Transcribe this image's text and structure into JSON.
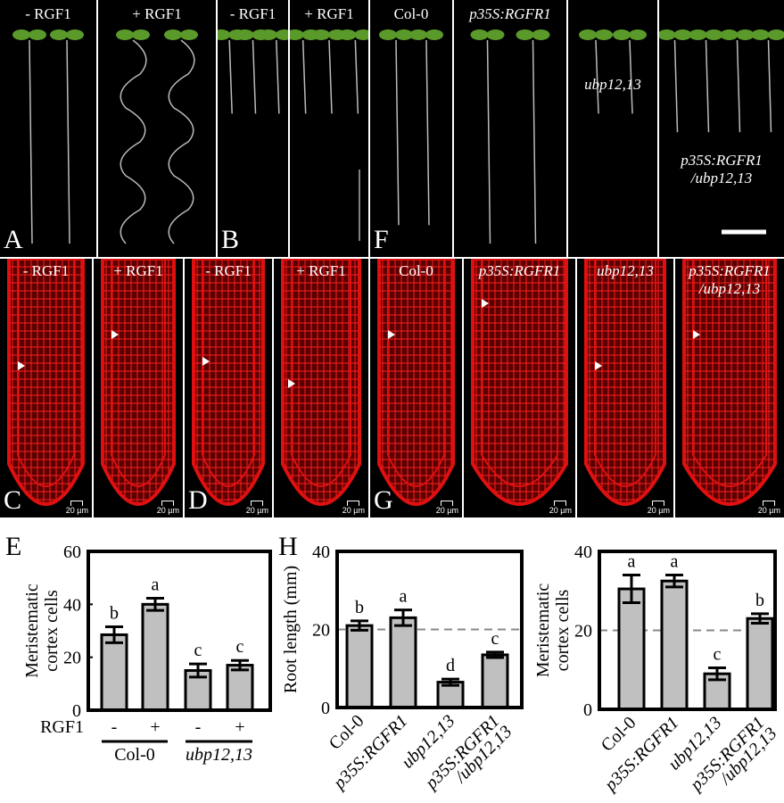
{
  "panels_top": [
    {
      "label": "- RGF1",
      "letter": "A",
      "type": "seedlings",
      "n": 2,
      "long": 1
    },
    {
      "label": "+ RGF1",
      "type": "seedlings",
      "n": 2,
      "long": 1,
      "wavy": 1
    },
    {
      "label": "- RGF1",
      "letter": "B",
      "type": "seedlings",
      "n": 3,
      "long": 0.3
    },
    {
      "label": "+ RGF1",
      "type": "seedlings",
      "n": 3,
      "long": 0.3
    },
    {
      "label": "Col-0",
      "letter": "F",
      "type": "seedlings",
      "n": 2,
      "long": 0.9
    },
    {
      "label": "p35S:RGFR1",
      "italic": true,
      "type": "seedlings",
      "n": 2,
      "long": 1
    },
    {
      "label": "ubp12,13",
      "italic": true,
      "type": "seedlings",
      "n": 2,
      "long": 0.3
    },
    {
      "label": "p35S:RGFR1",
      "label2": "/ubp12,13",
      "italic": true,
      "type": "seedlings",
      "n": 4,
      "long": 0.4
    }
  ],
  "panels_mid": [
    {
      "label": "- RGF1",
      "letter": "C",
      "scale": "20 µm"
    },
    {
      "label": "+ RGF1",
      "scale": "20 µm"
    },
    {
      "label": "- RGF1",
      "letter": "D",
      "scale": "20 µm"
    },
    {
      "label": "+ RGF1",
      "scale": "20 µm"
    },
    {
      "label": "Col-0",
      "letter": "G",
      "scale": "20 µm"
    },
    {
      "label": "p35S:RGFR1",
      "italic": true,
      "scale": "20 µm"
    },
    {
      "label": "ubp12,13",
      "italic": true,
      "scale": "20 µm"
    },
    {
      "label": "p35S:RGFR1",
      "label2": "/ubp12,13",
      "italic": true,
      "scale": "20 µm"
    }
  ],
  "chart_data": [
    {
      "type": "bar",
      "panel": "E",
      "ylabel": [
        "Meristematic",
        "cortex cells"
      ],
      "ylim": [
        0,
        60
      ],
      "yticks": [
        0,
        20,
        40,
        60
      ],
      "categories": [
        "-",
        "+",
        "-",
        "+"
      ],
      "row_label": "RGF1",
      "groups": [
        {
          "name": "Col-0",
          "italic": false
        },
        {
          "name": "ubp12,13",
          "italic": true
        }
      ],
      "values": [
        28.5,
        40,
        15,
        17
      ],
      "errors": [
        3,
        2.3,
        2.5,
        1.8
      ],
      "letters": [
        "b",
        "a",
        "c",
        "c"
      ]
    },
    {
      "type": "bar",
      "panel": "H",
      "ylabel": [
        "Root length (mm)"
      ],
      "ylim": [
        0,
        40
      ],
      "yticks": [
        0,
        20,
        40
      ],
      "reference_line": 20,
      "categories": [
        "Col-0",
        "p35S:RGFR1",
        "ubp12,13",
        "p35S:RGFR1 /ubp12,13"
      ],
      "values": [
        21,
        23,
        6.5,
        13.5
      ],
      "errors": [
        1.2,
        2,
        0.8,
        0.7
      ],
      "letters": [
        "b",
        "a",
        "d",
        "c"
      ]
    },
    {
      "type": "bar",
      "panel": "",
      "ylabel": [
        "Meristematic",
        "cortex cells"
      ],
      "ylim": [
        0,
        40
      ],
      "yticks": [
        0,
        20,
        40
      ],
      "reference_line": 20,
      "categories": [
        "Col-0",
        "p35S:RGFR1",
        "ubp12,13",
        "p35S:RGFR1 /ubp12,13"
      ],
      "values": [
        30.5,
        32.5,
        9,
        23
      ],
      "errors": [
        3.5,
        1.5,
        1.5,
        1.2
      ],
      "letters": [
        "a",
        "a",
        "c",
        "b"
      ]
    }
  ],
  "colors": {
    "bar": "#c0c0c0",
    "root": "#e01010",
    "leaf": "#5a9a2a"
  }
}
